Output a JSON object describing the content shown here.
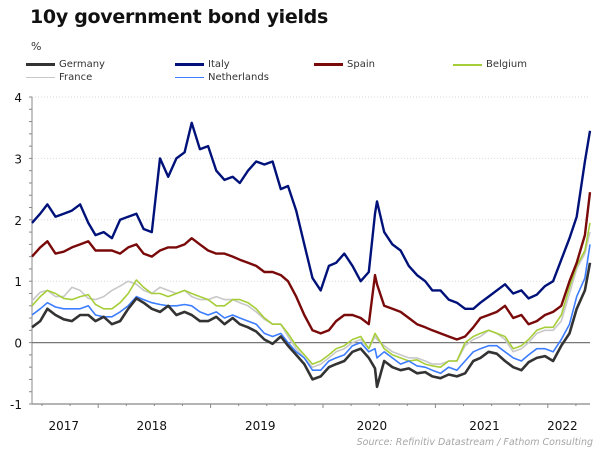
{
  "chart_data": {
    "type": "line",
    "title": "10y government bond yields",
    "ylabel": "%",
    "xlabel": "",
    "ylim": [
      -1,
      4
    ],
    "xlim": [
      2016.85,
      2022.3
    ],
    "yticks": [
      -1,
      0,
      1,
      2,
      3,
      4
    ],
    "xtick_labels": [
      {
        "label": "2017",
        "at": 2017.16
      },
      {
        "label": "2018",
        "at": 2018.02
      },
      {
        "label": "2019",
        "at": 2019.08
      },
      {
        "label": "2020",
        "at": 2020.17
      },
      {
        "label": "2021",
        "at": 2021.27
      },
      {
        "label": "2022",
        "at": 2022.03
      }
    ],
    "grid": true,
    "legend_position": "top",
    "source": "Source: Refinitiv Datastream / Fathom Consulting",
    "x": [
      2016.85,
      2016.93,
      2017.0,
      2017.08,
      2017.16,
      2017.24,
      2017.32,
      2017.4,
      2017.47,
      2017.55,
      2017.63,
      2017.71,
      2017.79,
      2017.87,
      2017.94,
      2018.02,
      2018.1,
      2018.18,
      2018.26,
      2018.34,
      2018.41,
      2018.49,
      2018.57,
      2018.65,
      2018.73,
      2018.81,
      2018.88,
      2018.96,
      2019.04,
      2019.12,
      2019.2,
      2019.28,
      2019.35,
      2019.43,
      2019.51,
      2019.59,
      2019.67,
      2019.75,
      2019.82,
      2019.9,
      2019.98,
      2020.06,
      2020.14,
      2020.2,
      2020.22,
      2020.29,
      2020.37,
      2020.45,
      2020.53,
      2020.61,
      2020.69,
      2020.76,
      2020.84,
      2020.92,
      2021.0,
      2021.08,
      2021.16,
      2021.23,
      2021.31,
      2021.39,
      2021.47,
      2021.55,
      2021.63,
      2021.7,
      2021.78,
      2021.86,
      2021.94,
      2022.02,
      2022.1,
      2022.17,
      2022.25,
      2022.3
    ],
    "series": [
      {
        "name": "Germany",
        "color": "#333333",
        "width": 2.6,
        "values": [
          0.25,
          0.35,
          0.55,
          0.45,
          0.38,
          0.35,
          0.45,
          0.45,
          0.35,
          0.42,
          0.3,
          0.35,
          0.55,
          0.72,
          0.65,
          0.55,
          0.5,
          0.6,
          0.45,
          0.5,
          0.45,
          0.35,
          0.35,
          0.42,
          0.3,
          0.4,
          0.3,
          0.25,
          0.18,
          0.05,
          -0.02,
          0.1,
          -0.05,
          -0.2,
          -0.35,
          -0.6,
          -0.55,
          -0.4,
          -0.35,
          -0.3,
          -0.15,
          -0.1,
          -0.25,
          -0.42,
          -0.72,
          -0.3,
          -0.4,
          -0.45,
          -0.42,
          -0.5,
          -0.48,
          -0.55,
          -0.58,
          -0.52,
          -0.55,
          -0.5,
          -0.3,
          -0.25,
          -0.15,
          -0.18,
          -0.3,
          -0.4,
          -0.45,
          -0.32,
          -0.25,
          -0.22,
          -0.3,
          -0.05,
          0.15,
          0.55,
          0.85,
          1.3
        ]
      },
      {
        "name": "Italy",
        "color": "#00127a",
        "width": 2.4,
        "values": [
          1.95,
          2.1,
          2.25,
          2.05,
          2.1,
          2.15,
          2.25,
          1.95,
          1.75,
          1.8,
          1.7,
          2.0,
          2.05,
          2.1,
          1.85,
          1.8,
          3.0,
          2.7,
          3.0,
          3.1,
          3.58,
          3.15,
          3.2,
          2.8,
          2.65,
          2.7,
          2.6,
          2.8,
          2.95,
          2.9,
          2.95,
          2.5,
          2.55,
          2.15,
          1.6,
          1.05,
          0.85,
          1.25,
          1.3,
          1.45,
          1.25,
          1.0,
          1.15,
          2.1,
          2.3,
          1.8,
          1.6,
          1.5,
          1.25,
          1.1,
          1.0,
          0.85,
          0.85,
          0.7,
          0.65,
          0.55,
          0.55,
          0.65,
          0.75,
          0.85,
          0.95,
          0.8,
          0.85,
          0.72,
          0.78,
          0.92,
          1.0,
          1.35,
          1.7,
          2.05,
          2.95,
          3.45
        ]
      },
      {
        "name": "Spain",
        "color": "#7a0a0a",
        "width": 2.4,
        "values": [
          1.4,
          1.55,
          1.65,
          1.45,
          1.48,
          1.55,
          1.6,
          1.65,
          1.5,
          1.5,
          1.5,
          1.45,
          1.55,
          1.6,
          1.45,
          1.4,
          1.5,
          1.55,
          1.55,
          1.6,
          1.7,
          1.6,
          1.5,
          1.45,
          1.45,
          1.4,
          1.35,
          1.3,
          1.25,
          1.15,
          1.15,
          1.1,
          1.0,
          0.75,
          0.45,
          0.2,
          0.15,
          0.2,
          0.35,
          0.45,
          0.45,
          0.4,
          0.3,
          1.1,
          0.95,
          0.6,
          0.55,
          0.5,
          0.4,
          0.3,
          0.25,
          0.2,
          0.15,
          0.1,
          0.05,
          0.1,
          0.25,
          0.4,
          0.45,
          0.5,
          0.6,
          0.4,
          0.45,
          0.3,
          0.35,
          0.45,
          0.5,
          0.6,
          1.0,
          1.3,
          1.75,
          2.45
        ]
      },
      {
        "name": "Belgium",
        "color": "#a6ce39",
        "width": 1.6,
        "values": [
          0.6,
          0.75,
          0.85,
          0.8,
          0.72,
          0.7,
          0.75,
          0.78,
          0.62,
          0.55,
          0.55,
          0.65,
          0.8,
          1.02,
          0.9,
          0.8,
          0.8,
          0.75,
          0.8,
          0.85,
          0.8,
          0.75,
          0.7,
          0.6,
          0.6,
          0.7,
          0.7,
          0.65,
          0.55,
          0.4,
          0.3,
          0.3,
          0.15,
          -0.05,
          -0.2,
          -0.35,
          -0.3,
          -0.2,
          -0.1,
          -0.05,
          0.05,
          0.1,
          -0.1,
          0.15,
          0.1,
          -0.1,
          -0.2,
          -0.25,
          -0.3,
          -0.28,
          -0.35,
          -0.38,
          -0.4,
          -0.3,
          -0.3,
          0.0,
          0.1,
          0.15,
          0.2,
          0.15,
          0.1,
          -0.1,
          -0.05,
          0.05,
          0.2,
          0.25,
          0.25,
          0.45,
          0.9,
          1.25,
          1.5,
          1.95
        ]
      },
      {
        "name": "France",
        "color": "#c8c8c8",
        "width": 1.6,
        "values": [
          0.68,
          0.82,
          0.85,
          0.75,
          0.75,
          0.9,
          0.85,
          0.72,
          0.7,
          0.75,
          0.85,
          0.92,
          1.0,
          0.95,
          0.85,
          0.8,
          0.9,
          0.85,
          0.8,
          0.85,
          0.75,
          0.7,
          0.7,
          0.75,
          0.7,
          0.7,
          0.65,
          0.6,
          0.5,
          0.38,
          0.3,
          0.3,
          0.1,
          -0.1,
          -0.25,
          -0.4,
          -0.35,
          -0.25,
          -0.15,
          -0.1,
          0.0,
          0.05,
          -0.1,
          0.1,
          0.05,
          -0.05,
          -0.15,
          -0.2,
          -0.25,
          -0.25,
          -0.3,
          -0.35,
          -0.35,
          -0.3,
          -0.3,
          -0.05,
          0.05,
          0.1,
          0.2,
          0.15,
          0.05,
          -0.15,
          -0.1,
          0.0,
          0.15,
          0.2,
          0.2,
          0.35,
          0.8,
          1.2,
          1.45,
          1.8
        ]
      },
      {
        "name": "Netherlands",
        "color": "#3d7dff",
        "width": 1.6,
        "values": [
          0.45,
          0.55,
          0.65,
          0.58,
          0.55,
          0.55,
          0.55,
          0.6,
          0.45,
          0.42,
          0.42,
          0.5,
          0.6,
          0.75,
          0.7,
          0.65,
          0.62,
          0.6,
          0.6,
          0.62,
          0.6,
          0.5,
          0.45,
          0.5,
          0.4,
          0.45,
          0.4,
          0.35,
          0.3,
          0.15,
          0.1,
          0.15,
          0.0,
          -0.15,
          -0.25,
          -0.45,
          -0.45,
          -0.3,
          -0.25,
          -0.2,
          -0.05,
          0.0,
          -0.15,
          -0.1,
          -0.25,
          -0.15,
          -0.25,
          -0.35,
          -0.3,
          -0.38,
          -0.4,
          -0.45,
          -0.5,
          -0.4,
          -0.45,
          -0.3,
          -0.15,
          -0.1,
          -0.05,
          -0.05,
          -0.15,
          -0.25,
          -0.3,
          -0.2,
          -0.1,
          -0.1,
          -0.15,
          0.05,
          0.3,
          0.75,
          1.05,
          1.6
        ]
      }
    ]
  },
  "legend": [
    {
      "name": "Germany"
    },
    {
      "name": "Italy"
    },
    {
      "name": "Spain"
    },
    {
      "name": "Belgium"
    },
    {
      "name": "France"
    },
    {
      "name": "Netherlands"
    }
  ]
}
